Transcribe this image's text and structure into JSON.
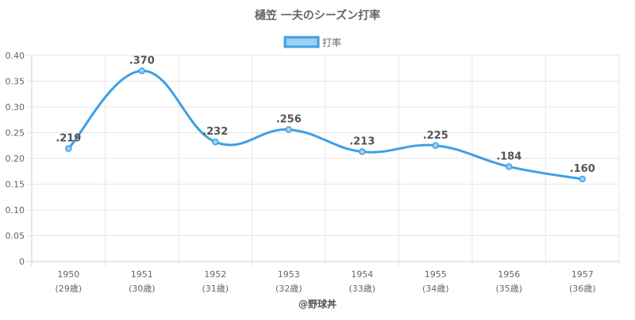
{
  "chart_data": {
    "type": "line",
    "title": "樋笠 一夫のシーズン打率",
    "legend": {
      "label": "打率",
      "placement": "top-center"
    },
    "categories": [
      "1950",
      "1951",
      "1952",
      "1953",
      "1954",
      "1955",
      "1956",
      "1957"
    ],
    "category_sublabels": [
      "(29歳)",
      "(30歳)",
      "(31歳)",
      "(32歳)",
      "(33歳)",
      "(34歳)",
      "(35歳)",
      "(36歳)"
    ],
    "series": [
      {
        "name": "打率",
        "values": [
          0.219,
          0.37,
          0.232,
          0.256,
          0.213,
          0.225,
          0.184,
          0.16
        ],
        "data_labels": [
          ".219",
          ".370",
          ".232",
          ".256",
          ".213",
          ".225",
          ".184",
          ".160"
        ],
        "color": "#3ea0e4"
      }
    ],
    "ylim": [
      0,
      0.4
    ],
    "y_ticks": [
      "0",
      "0.05",
      "0.10",
      "0.15",
      "0.20",
      "0.25",
      "0.30",
      "0.35",
      "0.40"
    ],
    "grid": true,
    "credit": "@野球丼",
    "colors": {
      "line": "#3ea0e4",
      "legend_fill": "#9fcff2",
      "grid": "#e6e6e6",
      "axis": "#cccccc",
      "tick_text": "#666666",
      "label_text": "#555555",
      "title_text": "#666666"
    }
  }
}
